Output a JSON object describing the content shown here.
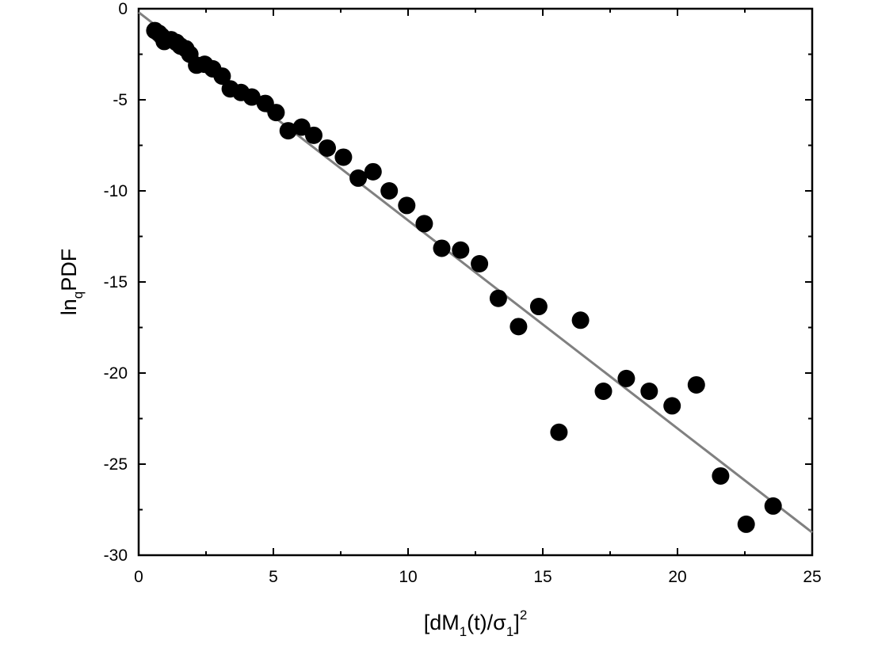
{
  "chart_data": {
    "type": "scatter",
    "xlabel": {
      "prefix": "[dM",
      "sub1": "1",
      "middle": "(t)/",
      "sigma": "σ",
      "sub2": "1",
      "close": "]",
      "sup": "2"
    },
    "ylabel": {
      "main": "ln",
      "sub": "q",
      "rest": "PDF"
    },
    "xlim": [
      0,
      25
    ],
    "ylim": [
      -30,
      0
    ],
    "xticks": [
      0,
      5,
      10,
      15,
      20,
      25
    ],
    "yticks": [
      0,
      -5,
      -10,
      -15,
      -20,
      -25,
      -30
    ],
    "xtick_labels": [
      "0",
      "5",
      "10",
      "15",
      "20",
      "25"
    ],
    "ytick_labels": [
      "0",
      "-5",
      "-10",
      "-15",
      "-20",
      "-25",
      "-30"
    ],
    "grid": false,
    "series": [
      {
        "type": "scatter",
        "color": "#000000",
        "marker": "filled-circle",
        "points": [
          [
            0.6,
            -1.2
          ],
          [
            0.75,
            -1.35
          ],
          [
            0.85,
            -1.5
          ],
          [
            0.95,
            -1.8
          ],
          [
            1.2,
            -1.7
          ],
          [
            1.4,
            -1.85
          ],
          [
            1.55,
            -2.05
          ],
          [
            1.75,
            -2.2
          ],
          [
            1.9,
            -2.5
          ],
          [
            2.15,
            -3.1
          ],
          [
            2.45,
            -3.05
          ],
          [
            2.75,
            -3.3
          ],
          [
            3.1,
            -3.7
          ],
          [
            3.4,
            -4.4
          ],
          [
            3.8,
            -4.6
          ],
          [
            4.2,
            -4.85
          ],
          [
            4.7,
            -5.2
          ],
          [
            5.1,
            -5.7
          ],
          [
            5.55,
            -6.7
          ],
          [
            6.05,
            -6.5
          ],
          [
            6.5,
            -6.95
          ],
          [
            7.0,
            -7.65
          ],
          [
            7.6,
            -8.15
          ],
          [
            8.15,
            -9.3
          ],
          [
            8.7,
            -8.95
          ],
          [
            9.3,
            -10.0
          ],
          [
            9.95,
            -10.8
          ],
          [
            10.6,
            -11.8
          ],
          [
            11.25,
            -13.15
          ],
          [
            11.95,
            -13.25
          ],
          [
            12.65,
            -14.0
          ],
          [
            13.35,
            -15.9
          ],
          [
            14.1,
            -17.45
          ],
          [
            14.85,
            -16.35
          ],
          [
            15.6,
            -23.25
          ],
          [
            16.4,
            -17.1
          ],
          [
            17.25,
            -21.0
          ],
          [
            18.1,
            -20.3
          ],
          [
            18.95,
            -21.0
          ],
          [
            19.8,
            -21.8
          ],
          [
            20.7,
            -20.65
          ],
          [
            21.6,
            -25.65
          ],
          [
            22.55,
            -28.3
          ],
          [
            23.55,
            -27.3
          ]
        ]
      },
      {
        "type": "line",
        "color": "#808080",
        "x": [
          0,
          25
        ],
        "y": [
          -0.2,
          -28.75
        ]
      }
    ]
  }
}
